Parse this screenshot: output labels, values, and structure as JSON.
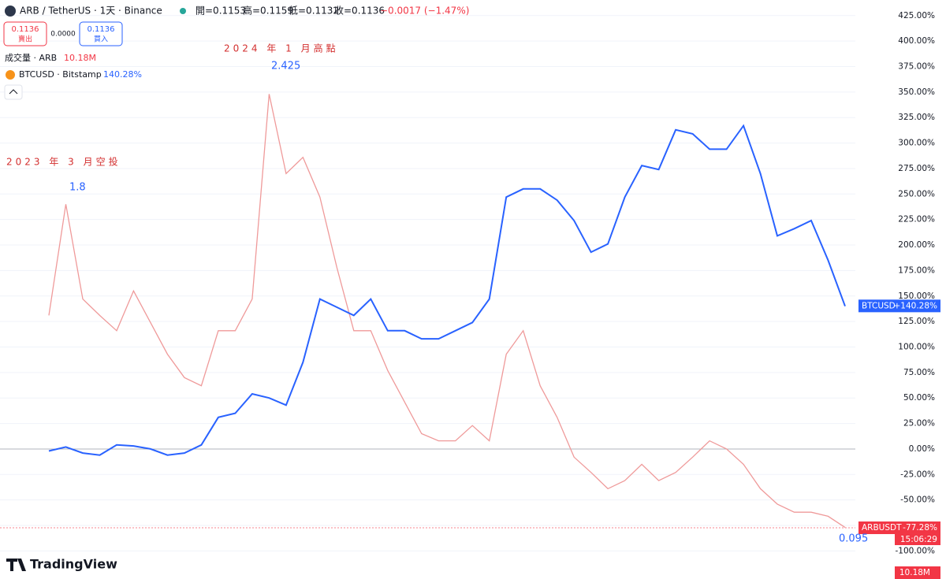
{
  "header": {
    "symbol": "ARB / TetherUS · 1天 · Binance",
    "open": "開=0.1153",
    "high": "高=0.1159",
    "low": "低=0.1132",
    "close": "收=0.1136",
    "change": "−0.0017 (−1.47%)",
    "sell_price": "0.1136",
    "sell_label": "賣出",
    "spread": "0.0000",
    "buy_price": "0.1136",
    "buy_label": "買入",
    "volume_name": "成交量 · ARB",
    "volume_value": "10.18M",
    "compare_name": "BTCUSD · Bitstamp",
    "compare_value": "140.28%",
    "logo": "TradingView",
    "time_tag": "15:06:29",
    "volume_tag": "10.18M"
  },
  "chart_data": {
    "type": "line",
    "annotations": [
      "2024 年 1 月高點",
      "2.425",
      "2023 年 3 月空投",
      "1.8",
      "0.095"
    ],
    "series": [
      {
        "name": "ARBUSDT",
        "color": "#ef9a9a",
        "tag": {
          "value": -77.28,
          "label": "-77.28%"
        },
        "tag_color": "#f23645",
        "values": [
          131,
          240,
          147,
          131,
          116,
          155,
          124,
          93,
          70,
          62,
          116,
          116,
          147,
          348,
          270,
          286,
          247,
          178,
          116,
          116,
          77,
          46,
          15,
          8,
          8,
          23,
          8,
          93,
          116,
          62,
          31,
          -8,
          -23,
          -39,
          -31,
          -15,
          -31,
          -23,
          -8,
          8,
          0,
          -15,
          -39,
          -54,
          -62,
          -62,
          -66,
          -77
        ]
      },
      {
        "name": "BTCUSD",
        "color": "#2962ff",
        "tag": {
          "value": 140.28,
          "label": "+140.28%"
        },
        "tag_color": "#2962ff",
        "values": [
          -2,
          2,
          -4,
          -6,
          4,
          3,
          0,
          -6,
          -4,
          4,
          31,
          35,
          54,
          50,
          43,
          85,
          147,
          139,
          131,
          147,
          116,
          116,
          108,
          108,
          116,
          124,
          147,
          247,
          255,
          255,
          244,
          224,
          193,
          201,
          247,
          278,
          274,
          313,
          309,
          294,
          294,
          317,
          270,
          209,
          216,
          224,
          185,
          140
        ]
      }
    ],
    "ylim": [
      -127.5,
      431
    ],
    "yticks": [
      {
        "value": -100,
        "label": "-100.00%"
      },
      {
        "value": -75,
        "label": "-75.00%"
      },
      {
        "value": -50,
        "label": "-50.00%"
      },
      {
        "value": -25,
        "label": "-25.00%"
      },
      {
        "value": 0,
        "label": "0.00%"
      },
      {
        "value": 25,
        "label": "25.00%"
      },
      {
        "value": 50,
        "label": "50.00%"
      },
      {
        "value": 75,
        "label": "75.00%"
      },
      {
        "value": 100,
        "label": "100.00%"
      },
      {
        "value": 125,
        "label": "125.00%"
      },
      {
        "value": 150,
        "label": "150.00%"
      },
      {
        "value": 175,
        "label": "175.00%"
      },
      {
        "value": 200,
        "label": "200.00%"
      },
      {
        "value": 225,
        "label": "225.00%"
      },
      {
        "value": 250,
        "label": "250.00%"
      },
      {
        "value": 275,
        "label": "275.00%"
      },
      {
        "value": 300,
        "label": "300.00%"
      },
      {
        "value": 325,
        "label": "325.00%"
      },
      {
        "value": 350,
        "label": "350.00%"
      },
      {
        "value": 375,
        "label": "375.00%"
      },
      {
        "value": 400,
        "label": "400.00%"
      },
      {
        "value": 425,
        "label": "425.00%"
      }
    ],
    "grid": true
  }
}
